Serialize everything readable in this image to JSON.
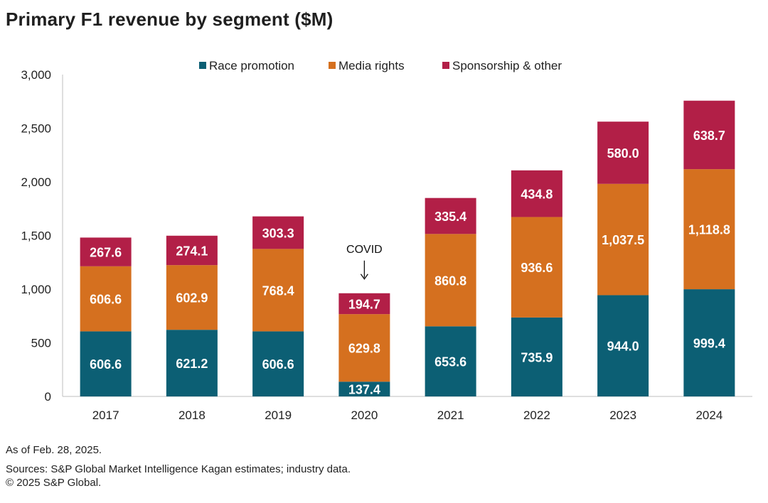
{
  "title": "Primary F1 revenue by segment ($M)",
  "footer": {
    "as_of": "As of Feb. 28, 2025.",
    "sources": "Sources: S&P Global Market Intelligence Kagan estimates; industry data.",
    "copyright": "© 2025 S&P Global."
  },
  "colors": {
    "race_promotion": "#0c5f74",
    "media_rights": "#d5701f",
    "sponsorship": "#b21f47"
  },
  "chart_data": {
    "type": "bar",
    "stacked": true,
    "categories": [
      "2017",
      "2018",
      "2019",
      "2020",
      "2021",
      "2022",
      "2023",
      "2024"
    ],
    "series": [
      {
        "name": "Race promotion",
        "color": "#0c5f74",
        "values": [
          606.6,
          621.2,
          606.6,
          137.4,
          653.6,
          735.9,
          944.0,
          999.4
        ],
        "labels": [
          "606.6",
          "621.2",
          "606.6",
          "137.4",
          "653.6",
          "735.9",
          "944.0",
          "999.4"
        ]
      },
      {
        "name": "Media rights",
        "color": "#d5701f",
        "values": [
          606.6,
          602.9,
          768.4,
          629.8,
          860.8,
          936.6,
          1037.5,
          1118.8
        ],
        "labels": [
          "606.6",
          "602.9",
          "768.4",
          "629.8",
          "860.8",
          "936.6",
          "1,037.5",
          "1,118.8"
        ]
      },
      {
        "name": "Sponsorship & other",
        "color": "#b21f47",
        "values": [
          267.6,
          274.1,
          303.3,
          194.7,
          335.4,
          434.8,
          580.0,
          638.7
        ],
        "labels": [
          "267.6",
          "274.1",
          "303.3",
          "194.7",
          "335.4",
          "434.8",
          "580.0",
          "638.7"
        ]
      }
    ],
    "ylim": [
      0,
      3000
    ],
    "yticks": [
      0,
      500,
      1000,
      1500,
      2000,
      2500,
      3000
    ],
    "ytick_labels": [
      "0",
      "500",
      "1,000",
      "1,500",
      "2,000",
      "2,500",
      "3,000"
    ],
    "grid": false,
    "legend_position": "top",
    "annotations": [
      {
        "text": "COVID",
        "category": "2020"
      }
    ]
  }
}
